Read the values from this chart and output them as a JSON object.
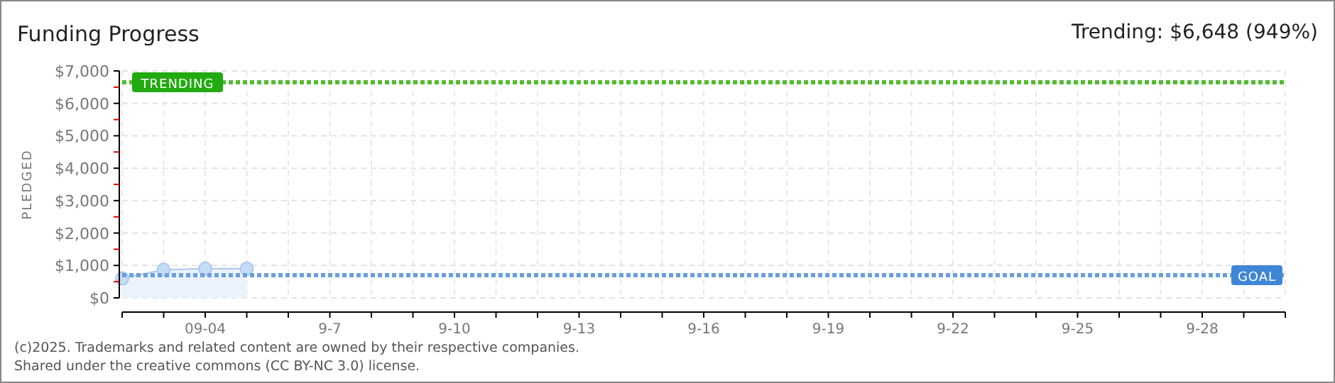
{
  "chart_data": {
    "type": "area",
    "title": "Funding Progress",
    "ylabel": "PLEDGED",
    "annotations": [
      "Trending: $6,648 (949%)",
      "(c)2025. Trademarks and related content are owned by their respective companies.",
      "Shared under the creative commons (CC BY-NC 3.0) license."
    ],
    "x": [
      "--09-02",
      "--09-03",
      "--09-04",
      "--09-05"
    ],
    "series": [
      {
        "color": "#a9c8ef",
        "values": [
          600,
          870,
          900,
          900
        ]
      }
    ],
    "xlim": [
      "--09-02",
      "--09-30"
    ],
    "xticks": [
      {
        "value": "--09-02",
        "label": null
      },
      {
        "value": "--09-03",
        "label": null
      },
      {
        "value": "--09-04",
        "label": "09-04"
      },
      {
        "value": "--09-05",
        "label": null
      },
      {
        "value": "--09-06",
        "label": null
      },
      {
        "value": "--09-07",
        "label": "9-7"
      },
      {
        "value": "--09-08",
        "label": null
      },
      {
        "value": "--09-09",
        "label": null
      },
      {
        "value": "--09-10",
        "label": "9-10"
      },
      {
        "value": "--09-11",
        "label": null
      },
      {
        "value": "--09-12",
        "label": null
      },
      {
        "value": "--09-13",
        "label": "9-13"
      },
      {
        "value": "--09-14",
        "label": null
      },
      {
        "value": "--09-15",
        "label": null
      },
      {
        "value": "--09-16",
        "label": "9-16"
      },
      {
        "value": "--09-17",
        "label": null
      },
      {
        "value": "--09-18",
        "label": null
      },
      {
        "value": "--09-19",
        "label": "9-19"
      },
      {
        "value": "--09-20",
        "label": null
      },
      {
        "value": "--09-21",
        "label": null
      },
      {
        "value": "--09-22",
        "label": "9-22"
      },
      {
        "value": "--09-23",
        "label": null
      },
      {
        "value": "--09-24",
        "label": null
      },
      {
        "value": "--09-25",
        "label": "9-25"
      },
      {
        "value": "--09-26",
        "label": null
      },
      {
        "value": "--09-27",
        "label": null
      },
      {
        "value": "--09-28",
        "label": "9-28"
      },
      {
        "value": "--09-29",
        "label": null
      },
      {
        "value": "--09-30",
        "label": null
      }
    ],
    "ylim": [
      0,
      7000
    ],
    "yticks": [
      {
        "value": 0,
        "label": "$0"
      },
      {
        "value": 500,
        "label": null
      },
      {
        "value": 1000,
        "label": "$1,000"
      },
      {
        "value": 1500,
        "label": null
      },
      {
        "value": 2000,
        "label": "$2,000"
      },
      {
        "value": 2500,
        "label": null
      },
      {
        "value": 3000,
        "label": "$3,000"
      },
      {
        "value": 3500,
        "label": null
      },
      {
        "value": 4000,
        "label": "$4,000"
      },
      {
        "value": 4500,
        "label": null
      },
      {
        "value": 5000,
        "label": "$5,000"
      },
      {
        "value": 5500,
        "label": null
      },
      {
        "value": 6000,
        "label": "$6,000"
      },
      {
        "value": 6500,
        "label": null
      },
      {
        "value": 7000,
        "label": "$7,000"
      }
    ],
    "grid": true,
    "marker": "circle",
    "ref_lines": [
      {
        "axis": "y",
        "value": 6648,
        "label": "TRENDING",
        "color": "#55bb33",
        "line_style": "dotted"
      },
      {
        "axis": "y",
        "value": 700,
        "label": "GOAL",
        "color": "#6a9fdc",
        "line_style": "dotted"
      }
    ]
  }
}
